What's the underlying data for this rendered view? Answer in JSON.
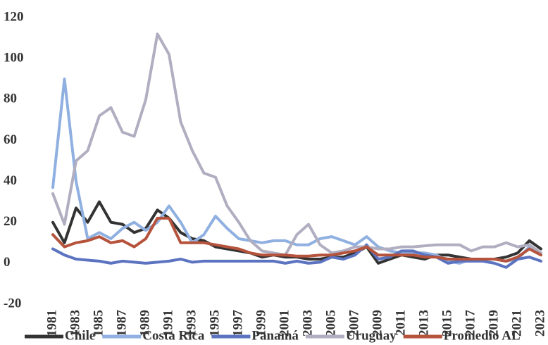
{
  "chart_data": {
    "type": "line",
    "x": [
      1981,
      1982,
      1983,
      1984,
      1985,
      1986,
      1987,
      1988,
      1989,
      1990,
      1991,
      1992,
      1993,
      1994,
      1995,
      1996,
      1997,
      1998,
      1999,
      2000,
      2001,
      2002,
      2003,
      2004,
      2005,
      2006,
      2007,
      2008,
      2009,
      2010,
      2011,
      2012,
      2013,
      2014,
      2015,
      2016,
      2017,
      2018,
      2019,
      2020,
      2021,
      2022,
      2023
    ],
    "xlim": [
      1981,
      2023
    ],
    "xticks": [
      1981,
      1983,
      1985,
      1987,
      1989,
      1991,
      1993,
      1995,
      1997,
      1999,
      2001,
      2003,
      2005,
      2007,
      2009,
      2011,
      2013,
      2015,
      2017,
      2019,
      2021,
      2023
    ],
    "ylim": [
      -20,
      120
    ],
    "yticks": [
      -20,
      0,
      20,
      40,
      60,
      80,
      100,
      120
    ],
    "grid": false,
    "legend": "bottom",
    "series": [
      {
        "name": "Chile",
        "color": "#333333",
        "values": [
          20,
          10,
          27,
          20,
          30,
          20,
          19,
          15,
          17,
          26,
          22,
          15,
          12,
          11,
          8,
          7,
          6,
          5,
          3,
          4,
          3,
          3,
          2,
          2,
          3,
          3,
          5,
          8,
          0,
          2,
          4,
          3,
          2,
          4,
          4,
          3,
          2,
          2,
          2,
          3,
          5,
          11,
          7
        ]
      },
      {
        "name": "Costa Rica",
        "color": "#8fb0e0",
        "values": [
          37,
          90,
          40,
          12,
          15,
          12,
          17,
          20,
          16,
          20,
          28,
          20,
          10,
          14,
          23,
          17,
          12,
          11,
          10,
          11,
          11,
          9,
          9,
          12,
          13,
          11,
          9,
          13,
          8,
          6,
          5,
          5,
          5,
          4,
          1,
          0,
          2,
          2,
          2,
          1,
          2,
          8,
          5
        ]
      },
      {
        "name": "Panamá",
        "color": "#5b73c0",
        "values": [
          7,
          4,
          2,
          1.5,
          1,
          0,
          1,
          0.5,
          0,
          0.5,
          1,
          2,
          0.5,
          1,
          1,
          1,
          1,
          1,
          1,
          1,
          0,
          1,
          0,
          0.5,
          3,
          2,
          4,
          9,
          2,
          3,
          6,
          6,
          4,
          3,
          0,
          1,
          1,
          1,
          0,
          -2,
          2,
          3,
          1
        ]
      },
      {
        "name": "Uruguay",
        "color": "#b0aec0",
        "values": [
          34,
          19,
          50,
          55,
          72,
          76,
          64,
          62,
          80,
          112,
          102,
          69,
          55,
          44,
          42,
          28,
          20,
          11,
          6,
          5,
          4,
          14,
          19,
          9,
          5,
          6,
          8,
          8,
          7,
          7,
          8,
          8,
          8.5,
          9,
          9,
          9,
          6,
          8,
          8,
          10,
          8,
          9,
          5
        ]
      },
      {
        "name": "Promedio AL",
        "color": "#b5533c",
        "values": [
          14,
          8,
          10,
          11,
          13,
          10,
          11,
          8,
          12,
          22,
          22,
          10,
          10,
          10,
          9,
          8,
          7,
          5,
          4,
          4,
          4,
          3.5,
          3.5,
          4,
          4,
          5,
          6,
          8,
          4,
          4,
          4,
          4,
          3,
          3,
          2,
          2,
          2,
          2,
          2,
          1,
          3,
          7,
          4
        ]
      }
    ]
  }
}
